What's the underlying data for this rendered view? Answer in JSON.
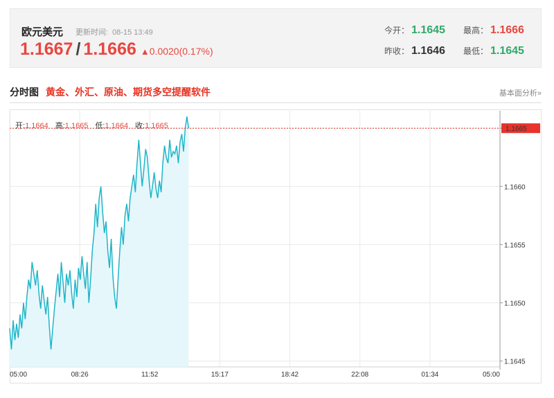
{
  "header": {
    "pair_name": "欧元美元",
    "update_label": "更新时间:",
    "update_time": "08-15 13:49",
    "bid": "1.1667",
    "ask": "1.1666",
    "change": "0.0020(0.17%)",
    "open_label": "今开：",
    "open_value": "1.1645",
    "high_label": "最高：",
    "high_value": "1.1666",
    "prev_close_label": "昨收：",
    "prev_close_value": "1.1646",
    "low_label": "最低：",
    "low_value": "1.1645"
  },
  "section": {
    "title": "分时图",
    "promo": "黄金、外汇、原油、期货多空提醒软件",
    "fundamental_link": "基本面分析»"
  },
  "ohlc": {
    "open_label": "开:",
    "open_value": "1.1664",
    "high_label": "高:",
    "high_value": "1.1665",
    "low_label": "低:",
    "low_value": "1.1664",
    "close_label": "收:",
    "close_value": "1.1665"
  },
  "colors": {
    "up": "#e8463f",
    "down": "#2fa86a",
    "line": "#1fb5c9",
    "area": "#e6f7fb",
    "price_tag": "#e8322b"
  },
  "chart_data": {
    "type": "area",
    "x_ticks": [
      "05:00",
      "08:26",
      "11:52",
      "15:17",
      "18:42",
      "22:08",
      "01:34",
      "05:00"
    ],
    "y_ticks": [
      "1.1645",
      "1.1650",
      "1.1655",
      "1.1660",
      "1.1665"
    ],
    "ylim": [
      1.16445,
      1.16665
    ],
    "current_price": "1.1665",
    "grid": true,
    "series": [
      {
        "values": [
          1.16478,
          1.1646,
          1.16485,
          1.16468,
          1.16482,
          1.1647,
          1.1649,
          1.16478,
          1.165,
          1.16486,
          1.16505,
          1.1652,
          1.16512,
          1.16535,
          1.16525,
          1.16515,
          1.16528,
          1.16508,
          1.16495,
          1.16515,
          1.16502,
          1.1649,
          1.16505,
          1.1648,
          1.1646,
          1.16478,
          1.16495,
          1.1651,
          1.16525,
          1.16505,
          1.16535,
          1.16518,
          1.165,
          1.16525,
          1.16515,
          1.16528,
          1.16508,
          1.16495,
          1.1652,
          1.16505,
          1.1653,
          1.1652,
          1.1654,
          1.16525,
          1.16512,
          1.16535,
          1.165,
          1.1652,
          1.16545,
          1.1656,
          1.16585,
          1.16565,
          1.1659,
          1.166,
          1.16578,
          1.1656,
          1.1657,
          1.16545,
          1.1653,
          1.16555,
          1.16522,
          1.16505,
          1.16495,
          1.1652,
          1.16545,
          1.16565,
          1.1655,
          1.16575,
          1.16585,
          1.1657,
          1.1659,
          1.166,
          1.1661,
          1.16595,
          1.1662,
          1.1664,
          1.1662,
          1.166,
          1.16615,
          1.16632,
          1.16625,
          1.16605,
          1.1659,
          1.166,
          1.16612,
          1.16598,
          1.1659,
          1.16605,
          1.16595,
          1.1662,
          1.16635,
          1.16625,
          1.1662,
          1.1664,
          1.16625,
          1.1663,
          1.16628,
          1.16635,
          1.1662,
          1.16638,
          1.16645,
          1.1663,
          1.1665,
          1.1666,
          1.1665
        ]
      }
    ]
  }
}
